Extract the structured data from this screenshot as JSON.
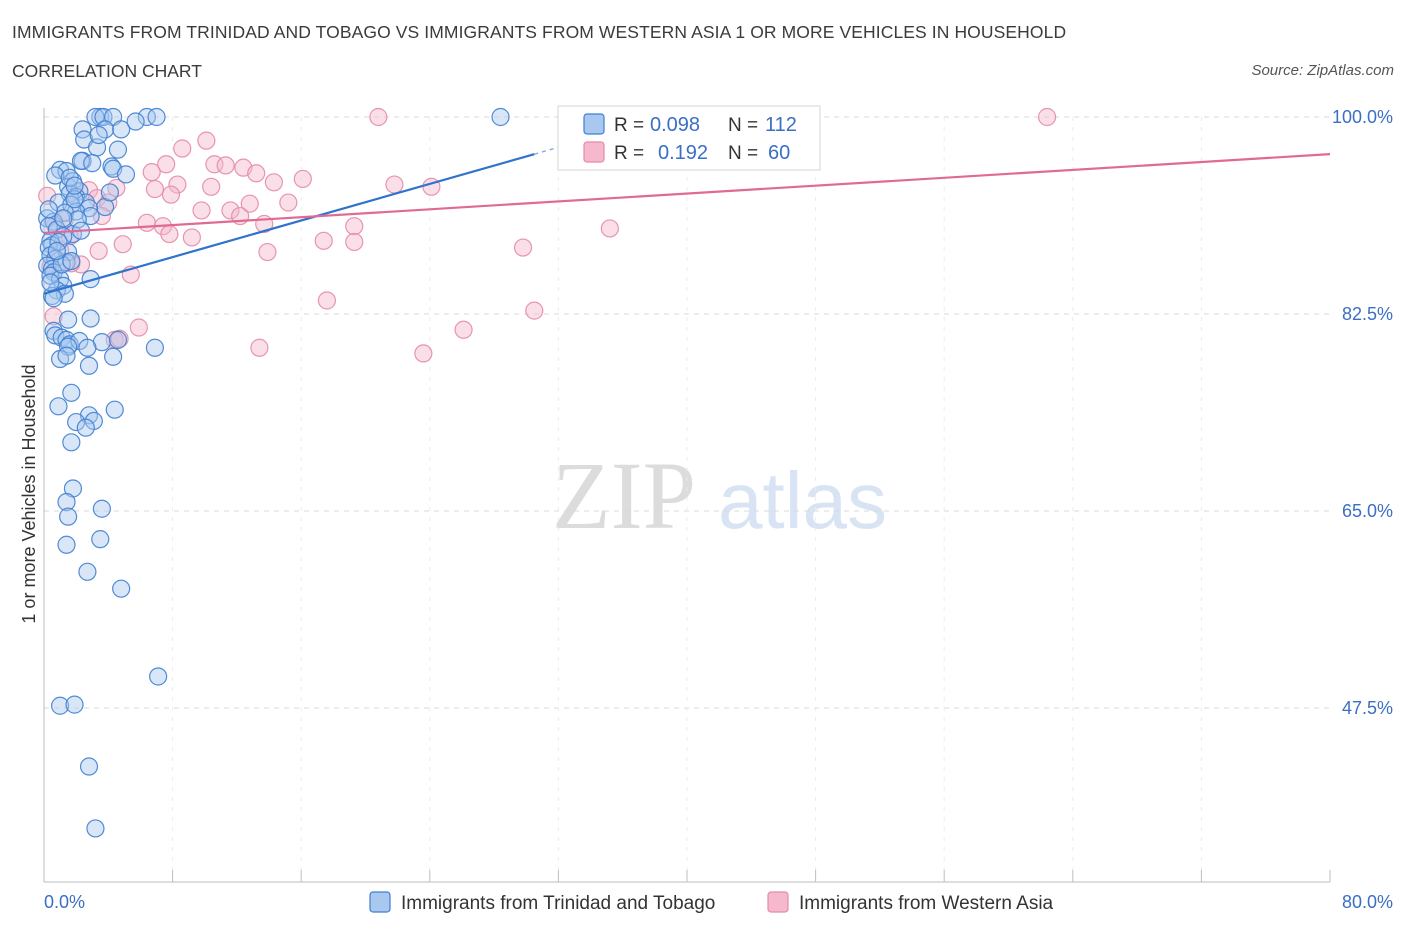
{
  "header": {
    "title": "IMMIGRANTS FROM TRINIDAD AND TOBAGO VS IMMIGRANTS FROM WESTERN ASIA 1 OR MORE VEHICLES IN HOUSEHOLD",
    "subtitle": "CORRELATION CHART",
    "source": "Source: ZipAtlas.com"
  },
  "watermark": {
    "zip": "ZIP",
    "atlas": "atlas"
  },
  "legend": {
    "r_label": "R =",
    "n_label": "N =",
    "series": [
      {
        "r": "0.098",
        "n": "112"
      },
      {
        "r": "0.192",
        "n": "60"
      }
    ]
  },
  "colors": {
    "blue_fill": "#a8c8f0",
    "blue_stroke": "#3f7fd0",
    "blue_line": "#2f73cc",
    "pink_fill": "#f5b8cc",
    "pink_stroke": "#e58aa8",
    "pink_line": "#e06a94",
    "grid": "#d9d9d9",
    "tick_text": "#3a6fc4"
  },
  "chart_data": {
    "type": "scatter",
    "ylabel": "1 or more Vehicles in Household",
    "xlim": [
      0,
      80
    ],
    "ylim": [
      37.5,
      102.5
    ],
    "x_tick_labels": [
      "0.0%",
      "80.0%"
    ],
    "y_ticks": [
      {
        "value": 100.0,
        "label": "100.0%"
      },
      {
        "value": 82.5,
        "label": "82.5%"
      },
      {
        "value": 65.0,
        "label": "65.0%"
      },
      {
        "value": 47.5,
        "label": "47.5%"
      }
    ],
    "series": [
      {
        "name": "Immigrants from Trinidad and Tobago",
        "color": "blue",
        "trend": {
          "x": [
            0.0,
            30.5
          ],
          "y": [
            84.3,
            96.7
          ],
          "dash_to_x": 33.0
        },
        "points": [
          [
            3.5,
            100
          ],
          [
            3.2,
            100
          ],
          [
            3.7,
            100
          ],
          [
            4.3,
            100
          ],
          [
            6.4,
            100
          ],
          [
            7.0,
            100
          ],
          [
            28.4,
            100
          ],
          [
            2.4,
            98.9
          ],
          [
            3.8,
            98.9
          ],
          [
            4.8,
            98.9
          ],
          [
            2.5,
            98.0
          ],
          [
            3.3,
            97.3
          ],
          [
            4.6,
            97.1
          ],
          [
            2.4,
            96.1
          ],
          [
            2.3,
            96.1
          ],
          [
            4.2,
            95.6
          ],
          [
            4.3,
            95.4
          ],
          [
            1.0,
            95.3
          ],
          [
            1.4,
            95.2
          ],
          [
            5.1,
            94.9
          ],
          [
            0.7,
            94.8
          ],
          [
            1.8,
            94.3
          ],
          [
            1.5,
            93.8
          ],
          [
            2.2,
            93.4
          ],
          [
            1.6,
            93.2
          ],
          [
            2.0,
            92.9
          ],
          [
            0.9,
            92.4
          ],
          [
            2.6,
            92.4
          ],
          [
            1.7,
            92.2
          ],
          [
            3.8,
            92.0
          ],
          [
            2.8,
            91.9
          ],
          [
            2.0,
            91.6
          ],
          [
            1.3,
            91.5
          ],
          [
            2.9,
            91.2
          ],
          [
            0.2,
            91.0
          ],
          [
            0.6,
            90.7
          ],
          [
            0.3,
            90.3
          ],
          [
            0.8,
            90.0
          ],
          [
            1.8,
            89.6
          ],
          [
            1.2,
            89.4
          ],
          [
            0.4,
            89.0
          ],
          [
            0.5,
            88.6
          ],
          [
            0.3,
            88.4
          ],
          [
            1.5,
            88.0
          ],
          [
            0.4,
            87.7
          ],
          [
            0.7,
            87.4
          ],
          [
            1.4,
            87.1
          ],
          [
            0.2,
            86.8
          ],
          [
            0.5,
            86.5
          ],
          [
            0.6,
            86.2
          ],
          [
            0.4,
            85.9
          ],
          [
            1.0,
            85.6
          ],
          [
            2.9,
            85.6
          ],
          [
            1.2,
            85.0
          ],
          [
            0.8,
            84.6
          ],
          [
            1.3,
            84.3
          ],
          [
            0.5,
            84.1
          ],
          [
            2.9,
            82.1
          ],
          [
            1.5,
            82.0
          ],
          [
            0.6,
            81.0
          ],
          [
            0.7,
            80.6
          ],
          [
            1.1,
            80.4
          ],
          [
            1.4,
            80.2
          ],
          [
            1.6,
            79.8
          ],
          [
            2.2,
            80.1
          ],
          [
            3.6,
            80.0
          ],
          [
            4.6,
            80.2
          ],
          [
            1.5,
            79.6
          ],
          [
            2.7,
            79.5
          ],
          [
            6.9,
            79.5
          ],
          [
            4.3,
            78.7
          ],
          [
            1.0,
            78.5
          ],
          [
            1.4,
            78.8
          ],
          [
            2.8,
            77.9
          ],
          [
            1.7,
            75.5
          ],
          [
            0.9,
            74.3
          ],
          [
            4.4,
            74.0
          ],
          [
            2.8,
            73.5
          ],
          [
            3.1,
            73.0
          ],
          [
            2.0,
            72.9
          ],
          [
            2.6,
            72.4
          ],
          [
            1.7,
            71.1
          ],
          [
            1.8,
            67.0
          ],
          [
            1.4,
            65.8
          ],
          [
            3.6,
            65.2
          ],
          [
            1.5,
            64.5
          ],
          [
            3.5,
            62.5
          ],
          [
            1.4,
            62.0
          ],
          [
            2.7,
            59.6
          ],
          [
            4.8,
            58.1
          ],
          [
            7.1,
            50.3
          ],
          [
            1.0,
            47.7
          ],
          [
            1.9,
            47.8
          ],
          [
            2.8,
            42.3
          ],
          [
            3.2,
            36.8
          ],
          [
            1.9,
            92.7
          ],
          [
            0.3,
            91.8
          ],
          [
            0.9,
            88.9
          ],
          [
            1.1,
            86.9
          ],
          [
            0.6,
            83.9
          ],
          [
            2.1,
            90.9
          ],
          [
            1.6,
            94.6
          ],
          [
            3.0,
            95.9
          ],
          [
            4.1,
            93.3
          ],
          [
            0.4,
            85.3
          ],
          [
            1.9,
            93.9
          ],
          [
            1.2,
            91.0
          ],
          [
            2.3,
            89.9
          ],
          [
            0.8,
            88.1
          ],
          [
            1.7,
            87.2
          ],
          [
            3.4,
            98.4
          ],
          [
            5.7,
            99.6
          ]
        ]
      },
      {
        "name": "Immigrants from Western Asia",
        "color": "pink",
        "trend": {
          "x": [
            0.0,
            80.0
          ],
          "y": [
            89.7,
            96.7
          ]
        },
        "points": [
          [
            20.8,
            100
          ],
          [
            42.2,
            100
          ],
          [
            62.4,
            100
          ],
          [
            10.1,
            97.9
          ],
          [
            8.6,
            97.2
          ],
          [
            7.6,
            95.8
          ],
          [
            10.6,
            95.8
          ],
          [
            11.3,
            95.7
          ],
          [
            12.4,
            95.5
          ],
          [
            6.7,
            95.1
          ],
          [
            13.2,
            95.0
          ],
          [
            14.3,
            94.2
          ],
          [
            16.1,
            94.5
          ],
          [
            8.3,
            94.0
          ],
          [
            10.4,
            93.8
          ],
          [
            21.8,
            94.0
          ],
          [
            24.1,
            93.8
          ],
          [
            4.5,
            93.7
          ],
          [
            6.9,
            93.6
          ],
          [
            7.9,
            93.1
          ],
          [
            2.8,
            93.5
          ],
          [
            3.3,
            92.8
          ],
          [
            4.0,
            92.4
          ],
          [
            12.8,
            92.3
          ],
          [
            15.2,
            92.4
          ],
          [
            9.8,
            91.7
          ],
          [
            11.6,
            91.7
          ],
          [
            12.2,
            91.2
          ],
          [
            3.6,
            91.2
          ],
          [
            0.7,
            90.4
          ],
          [
            1.3,
            90.9
          ],
          [
            6.4,
            90.6
          ],
          [
            7.4,
            90.3
          ],
          [
            13.7,
            90.5
          ],
          [
            19.3,
            90.3
          ],
          [
            35.2,
            90.1
          ],
          [
            7.8,
            89.6
          ],
          [
            9.2,
            89.3
          ],
          [
            17.4,
            89.0
          ],
          [
            19.3,
            88.9
          ],
          [
            1.6,
            89.4
          ],
          [
            4.9,
            88.7
          ],
          [
            3.4,
            88.1
          ],
          [
            13.9,
            88.0
          ],
          [
            29.8,
            88.4
          ],
          [
            2.3,
            86.9
          ],
          [
            5.4,
            86.0
          ],
          [
            17.6,
            83.7
          ],
          [
            30.5,
            82.8
          ],
          [
            5.9,
            81.3
          ],
          [
            26.1,
            81.1
          ],
          [
            4.4,
            80.2
          ],
          [
            4.7,
            80.3
          ],
          [
            13.4,
            79.5
          ],
          [
            23.6,
            79.0
          ],
          [
            0.2,
            93.0
          ],
          [
            1.0,
            88.2
          ],
          [
            0.4,
            86.7
          ],
          [
            1.7,
            87.0
          ],
          [
            0.6,
            82.3
          ]
        ]
      }
    ]
  }
}
